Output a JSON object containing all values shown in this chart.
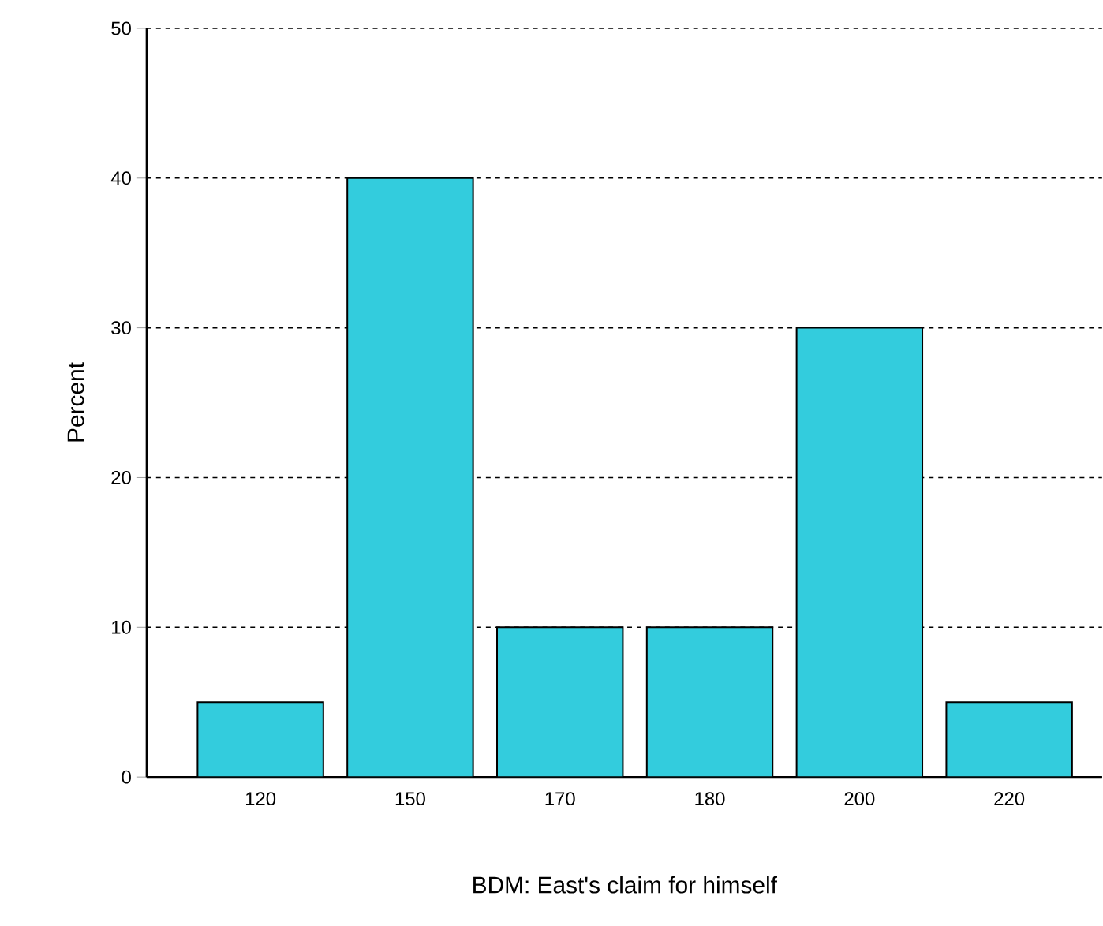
{
  "chart_data": {
    "type": "bar",
    "xlabel": "BDM: East's claim for himself",
    "ylabel": "Percent",
    "categories": [
      "120",
      "150",
      "170",
      "180",
      "200",
      "220"
    ],
    "values": [
      5,
      40,
      10,
      10,
      30,
      5
    ],
    "color": "#33ccdd",
    "ylim": [
      0,
      50
    ],
    "yticks": [
      0,
      10,
      20,
      30,
      40,
      50
    ],
    "grid": "y"
  }
}
